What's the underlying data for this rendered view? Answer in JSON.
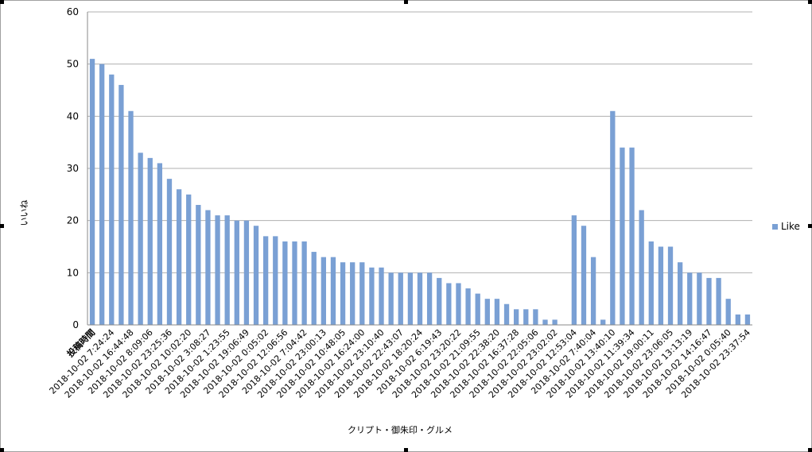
{
  "chart_data": {
    "type": "bar",
    "xlabel": "クリプト・御朱印・グルメ",
    "ylabel": "いいね",
    "ylim": [
      0,
      60
    ],
    "yticks": [
      0,
      10,
      20,
      30,
      40,
      50,
      60
    ],
    "grid": true,
    "legend_position": "right",
    "colors": {
      "bar": "#7aa0d4",
      "grid": "#b0b0b0"
    },
    "tick_labels": [
      "投稿時間",
      "2018-10-02 7:24:24",
      "2018-10-02 16:44:48",
      "2018-10-02 8:09:06",
      "2018-10-02 23:25:36",
      "2018-10-02 10:02:20",
      "2018-10-02 3:08:27",
      "2018-10-02 1:23:55",
      "2018-10-02 19:06:49",
      "2018-10-02 0:05:02",
      "2018-10-02 12:06:56",
      "2018-10-02 7:04:42",
      "2018-10-02 23:00:13",
      "2018-10-02 10:48:05",
      "2018-10-02 16:24:00",
      "2018-10-02 23:10:40",
      "2018-10-02 22:43:07",
      "2018-10-02 18:20:24",
      "2018-10-02 6:19:43",
      "2018-10-02 23:20:22",
      "2018-10-02 21:09:55",
      "2018-10-02 22:38:20",
      "2018-10-02 16:37:28",
      "2018-10-02 22:05:06",
      "2018-10-02 23:02:02",
      "2018-10-02 12:53:04",
      "2018-10-02 7:40:04",
      "2018-10-02 13:40:10",
      "2018-10-02 11:39:34",
      "2018-10-02 19:00:11",
      "2018-10-02 23:06:05",
      "2018-10-02 13:13:19",
      "2018-10-02 14:16:47",
      "2018-10-02 0:05:40",
      "2018-10-02 23:37:54"
    ],
    "series": [
      {
        "name": "Like",
        "values": [
          51,
          50,
          48,
          46,
          41,
          33,
          32,
          31,
          28,
          26,
          25,
          23,
          22,
          21,
          21,
          20,
          20,
          19,
          17,
          17,
          16,
          16,
          16,
          14,
          13,
          13,
          12,
          12,
          12,
          11,
          11,
          10,
          10,
          10,
          10,
          10,
          9,
          8,
          8,
          7,
          6,
          5,
          5,
          4,
          3,
          3,
          3,
          1,
          1,
          0,
          21,
          19,
          13,
          1,
          41,
          34,
          34,
          22,
          16,
          15,
          15,
          12,
          10,
          10,
          9,
          9,
          5,
          2,
          2
        ]
      }
    ]
  }
}
